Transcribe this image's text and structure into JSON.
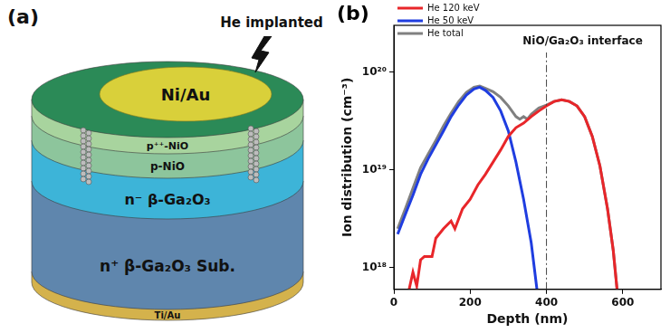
{
  "diagram": {
    "label": "(a)",
    "annotation": "He implanted",
    "layers": [
      "Ni/Au",
      "p⁺⁺-NiO",
      "p-NiO",
      "n⁻ β-Ga₂O₃",
      "n⁺ β-Ga₂O₃ Sub.",
      "Ti/Au"
    ]
  },
  "chart_data": {
    "type": "line",
    "panel_label": "(b)",
    "x_label": "Depth (nm)",
    "y_label": "Ion distribution (cm⁻³)",
    "xlim": [
      0,
      700
    ],
    "xticks": [
      0,
      200,
      400,
      600
    ],
    "log": "y",
    "ylim": [
      6e+17,
      3e+20
    ],
    "yticks": [
      {
        "value": 1e+18,
        "label": "10¹⁸"
      },
      {
        "value": 1e+19,
        "label": "10¹⁹"
      },
      {
        "value": 1e+20,
        "label": "10²⁰"
      }
    ],
    "grid": false,
    "legend": "upper left",
    "series": [
      {
        "name": "He 120 keV",
        "color": "#e8262a",
        "x": [
          40,
          50,
          60,
          70,
          80,
          100,
          110,
          130,
          150,
          160,
          180,
          200,
          220,
          240,
          260,
          280,
          300,
          320,
          340,
          360,
          380,
          400,
          420,
          440,
          460,
          480,
          500,
          520,
          540,
          560,
          575,
          585
        ],
        "values": [
          6e+17,
          9e+17,
          6.5e+17,
          1.2e+18,
          1.3e+18,
          1.3e+18,
          2e+18,
          2.5e+18,
          3e+18,
          2.5e+18,
          4e+18,
          5e+18,
          7e+18,
          9e+18,
          1.2e+19,
          1.6e+19,
          2.2e+19,
          2.7e+19,
          3e+19,
          3.5e+19,
          4e+19,
          4.5e+19,
          5e+19,
          5.2e+19,
          5e+19,
          4.5e+19,
          3.5e+19,
          2.2e+19,
          1.1e+19,
          4e+18,
          1.5e+18,
          6e+17
        ]
      },
      {
        "name": "He 50 keV",
        "color": "#1f3de0",
        "x": [
          10,
          30,
          50,
          70,
          90,
          110,
          130,
          150,
          170,
          190,
          210,
          225,
          240,
          260,
          280,
          300,
          320,
          340,
          360,
          375
        ],
        "values": [
          2.2e+18,
          3.5e+18,
          5.5e+18,
          9e+18,
          1.3e+19,
          1.8e+19,
          2.5e+19,
          3.5e+19,
          4.6e+19,
          5.8e+19,
          6.7e+19,
          7e+19,
          6.5e+19,
          5.5e+19,
          4e+19,
          2.5e+19,
          1.2e+19,
          5e+18,
          1.8e+18,
          6e+17
        ]
      },
      {
        "name": "He total",
        "color": "#808080",
        "x": [
          10,
          30,
          50,
          70,
          90,
          110,
          130,
          150,
          170,
          190,
          210,
          225,
          240,
          260,
          280,
          300,
          320,
          330,
          340,
          350,
          360,
          380,
          400,
          420,
          440,
          460,
          480,
          500,
          520,
          540,
          560,
          575,
          585
        ],
        "values": [
          2.5e+18,
          4e+18,
          6.5e+18,
          1.05e+19,
          1.45e+19,
          2e+19,
          2.8e+19,
          3.8e+19,
          5e+19,
          6.2e+19,
          7e+19,
          7.2e+19,
          6.8e+19,
          6.3e+19,
          5.5e+19,
          4.5e+19,
          3.5e+19,
          3.3e+19,
          3.5e+19,
          3.3e+19,
          3.7e+19,
          4.3e+19,
          4.6e+19,
          5e+19,
          5.2e+19,
          5e+19,
          4.5e+19,
          3.5e+19,
          2.2e+19,
          1.1e+19,
          4e+18,
          1.5e+18,
          6e+17
        ]
      }
    ],
    "annotations": [
      {
        "x": 400,
        "text": "NiO/Ga₂O₃ interface",
        "line_style": "dashdot"
      }
    ]
  }
}
